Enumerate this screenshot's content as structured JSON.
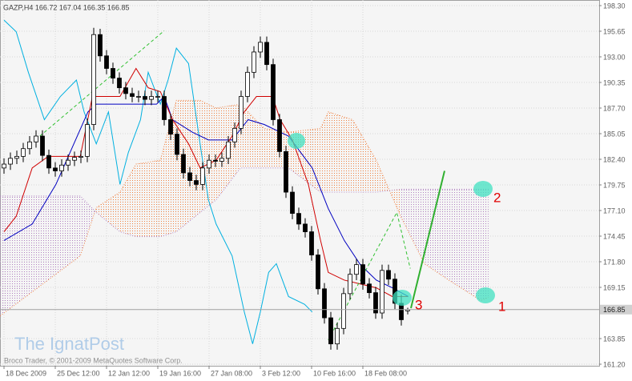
{
  "chart_data": {
    "type": "candlestick",
    "header": "GAZP,H4 166.72 167.04 166.35 166.85",
    "watermark": "The IgnatPost",
    "copyright": "Broco Trader, © 2001-2009 MetaQuotes Software Corp.",
    "annotations": [
      "1",
      "2",
      "3"
    ],
    "up_color": "#ffffff",
    "down_color": "#000000",
    "grid": true,
    "xlim": [
      -0.625,
      92.875
    ],
    "ylim": [
      161.2,
      198.3
    ],
    "yticks": [
      {
        "value": 198.3,
        "label": "198.30"
      },
      {
        "value": 195.65,
        "label": "195.65"
      },
      {
        "value": 193.0,
        "label": "193.00"
      },
      {
        "value": 190.35,
        "label": "190.35"
      },
      {
        "value": 187.7,
        "label": "187.70"
      },
      {
        "value": 185.05,
        "label": "185.05"
      },
      {
        "value": 182.4,
        "label": "182.40"
      },
      {
        "value": 179.75,
        "label": "179.75"
      },
      {
        "value": 177.1,
        "label": "177.10"
      },
      {
        "value": 174.45,
        "label": "174.45"
      },
      {
        "value": 171.8,
        "label": "171.80"
      },
      {
        "value": 169.15,
        "label": "169.15"
      },
      {
        "value": 163.85,
        "label": "163.85"
      },
      {
        "value": 161.2,
        "label": "161.20"
      }
    ],
    "xticks": [
      {
        "value": 0,
        "label": "18 Dec 2009"
      },
      {
        "value": 8,
        "label": "25 Dec 12:00"
      },
      {
        "value": 16,
        "label": "12 Jan 12:00"
      },
      {
        "value": 24,
        "label": "19 Jan 16:00"
      },
      {
        "value": 32,
        "label": "27 Jan 08:00"
      },
      {
        "value": 40,
        "label": "3 Feb 12:00"
      },
      {
        "value": 48,
        "label": "10 Feb 16:00"
      },
      {
        "value": 56,
        "label": "18 Feb 08:00"
      }
    ],
    "current_price": {
      "value": 166.85,
      "label": "166.85"
    },
    "x": [
      0,
      1,
      2,
      3,
      4,
      5,
      6,
      7,
      8,
      9,
      10,
      11,
      12,
      13,
      14,
      15,
      16,
      17,
      18,
      19,
      20,
      21,
      22,
      23,
      24,
      25,
      26,
      27,
      28,
      29,
      30,
      31,
      32,
      33,
      34,
      35,
      36,
      37,
      38,
      39,
      40,
      41,
      42,
      43,
      44,
      45,
      46,
      47,
      48,
      49,
      50,
      51,
      52,
      53,
      54,
      55,
      56,
      57,
      58,
      59,
      60,
      61,
      62,
      63
    ],
    "open": [
      181.5,
      181.9,
      182.5,
      182.7,
      183.5,
      184.2,
      184.8,
      182.8,
      181.5,
      181.2,
      181.8,
      182.3,
      182.6,
      182.7,
      186.0,
      195.3,
      193.1,
      191.8,
      190.8,
      189.8,
      189.2,
      188.9,
      188.9,
      188.6,
      188.9,
      188.9,
      186.5,
      185.0,
      182.9,
      181.0,
      180.2,
      179.8,
      181.5,
      182.3,
      182.2,
      182.5,
      184.2,
      185.6,
      188.9,
      191.4,
      193.5,
      194.5,
      192.2,
      186.5,
      183.2,
      179.0,
      176.8,
      175.7,
      174.9,
      172.5,
      169.0,
      166.0,
      163.3,
      164.9,
      168.5,
      170.5,
      171.5,
      169.5,
      168.6,
      166.5,
      170.9,
      170.0,
      167.5,
      166.72
    ],
    "high": [
      182.5,
      183.1,
      183.3,
      184.1,
      184.8,
      185.4,
      185.4,
      183.4,
      182.1,
      182.4,
      182.9,
      183.2,
      183.3,
      186.6,
      196.0,
      195.9,
      193.7,
      192.4,
      191.4,
      190.4,
      189.8,
      189.5,
      189.5,
      189.5,
      189.5,
      189.5,
      187.1,
      185.6,
      183.5,
      181.6,
      180.8,
      182.1,
      182.9,
      182.9,
      183.1,
      184.8,
      186.2,
      189.5,
      192.0,
      194.1,
      195.1,
      195.1,
      192.8,
      187.1,
      183.8,
      179.6,
      177.4,
      176.3,
      175.5,
      173.1,
      169.6,
      166.6,
      165.5,
      169.1,
      171.1,
      172.1,
      172.1,
      170.1,
      169.2,
      171.5,
      171.5,
      170.6,
      168.4,
      167.04
    ],
    "low": [
      180.9,
      181.3,
      181.9,
      182.1,
      182.9,
      183.6,
      182.2,
      180.9,
      180.6,
      180.6,
      181.2,
      181.7,
      182.0,
      182.1,
      185.4,
      192.5,
      191.2,
      190.2,
      189.2,
      188.6,
      188.3,
      188.3,
      188.0,
      188.0,
      188.3,
      185.9,
      184.4,
      182.3,
      180.4,
      179.6,
      179.2,
      179.2,
      180.9,
      181.6,
      181.6,
      181.9,
      183.6,
      185.0,
      188.3,
      190.8,
      192.9,
      191.6,
      185.9,
      182.6,
      178.4,
      176.2,
      175.1,
      174.3,
      171.9,
      168.4,
      165.4,
      162.7,
      162.7,
      164.3,
      167.9,
      169.9,
      168.9,
      168.0,
      165.9,
      165.9,
      169.4,
      166.9,
      165.2,
      166.35
    ],
    "close": [
      181.9,
      182.5,
      182.7,
      183.5,
      184.2,
      184.8,
      182.8,
      181.5,
      181.2,
      181.8,
      182.3,
      182.6,
      182.7,
      186.0,
      195.3,
      193.1,
      191.8,
      190.8,
      189.8,
      189.2,
      188.9,
      188.9,
      188.6,
      188.9,
      188.9,
      186.5,
      185.0,
      182.9,
      181.0,
      180.2,
      179.8,
      181.5,
      182.3,
      182.2,
      182.5,
      184.2,
      185.6,
      188.9,
      191.4,
      193.5,
      194.5,
      192.2,
      186.5,
      183.2,
      179.0,
      176.8,
      175.7,
      174.9,
      172.5,
      169.0,
      166.0,
      163.3,
      164.9,
      168.5,
      170.5,
      171.5,
      169.5,
      168.6,
      166.5,
      170.9,
      170.0,
      167.5,
      165.8,
      166.85
    ],
    "cloud": {
      "x": [
        -0.6,
        11.9,
        14.4,
        18.1,
        20.6,
        24.4,
        26.9,
        30.6,
        33.1,
        36.9,
        40.6,
        44.4,
        49.4,
        50.6,
        54.4,
        58.1,
        61.9,
        65.6,
        69.4,
        74.4,
        75.6
      ],
      "span_a": [
        166.2,
        172.4,
        177.4,
        179.0,
        181.9,
        182.3,
        188.5,
        188.5,
        187.7,
        188.1,
        185.6,
        185.2,
        185.6,
        187.3,
        186.5,
        182.3,
        176.5,
        171.6,
        169.9,
        167.8,
        168.1
      ],
      "span_b": [
        178.6,
        178.6,
        176.9,
        174.9,
        174.4,
        174.4,
        174.9,
        176.9,
        178.2,
        181.5,
        181.5,
        181.5,
        179.0,
        179.0,
        179.0,
        179.0,
        179.3,
        179.3,
        179.3,
        179.3,
        179.3
      ],
      "up_color": "#f08040",
      "down_color": "#b080c0"
    },
    "lines": [
      {
        "color": "#00b0e0",
        "width": 1,
        "x": [
          0,
          1.9,
          3.8,
          6.3,
          8.8,
          11.3,
          12.5,
          14.4,
          16.3,
          18.1,
          19.4,
          21.3,
          22.5,
          24.4,
          25.6,
          26.9,
          28.8,
          30.6,
          31.9,
          33.1,
          35.6,
          37.5,
          38.8,
          40,
          41.3,
          42.5,
          44.4,
          46.9,
          48.1
        ],
        "values": [
          196.8,
          195.6,
          191.4,
          186.5,
          188.9,
          190.6,
          187.3,
          184.0,
          187.3,
          179.8,
          183.1,
          186.5,
          191.4,
          188.1,
          190.6,
          193.9,
          192.3,
          184.0,
          178.2,
          175.7,
          172.4,
          166.6,
          163.3,
          166.6,
          170.7,
          171.6,
          168.2,
          167.4,
          166.6
        ]
      },
      {
        "color": "#0000c0",
        "width": 1,
        "x": [
          0,
          4.4,
          8.1,
          13.1,
          14.4,
          19.4,
          23.8,
          25,
          26.3,
          29.4,
          31.9,
          35.6,
          38.1,
          40.6,
          44.4,
          48.1,
          50.6,
          53.1,
          55.6,
          58.1,
          60.6,
          63.1
        ],
        "values": [
          174.0,
          175.7,
          179.8,
          187.3,
          188.1,
          188.1,
          188.1,
          188.9,
          186.5,
          185.2,
          184.4,
          184.4,
          186.5,
          186.0,
          184.8,
          181.5,
          177.3,
          174.0,
          171.5,
          169.9,
          169.1,
          168.2
        ]
      },
      {
        "color": "#d00000",
        "width": 1,
        "x": [
          0,
          1.9,
          4.4,
          6.9,
          9.4,
          11.9,
          13.8,
          18.1,
          20.6,
          22.5,
          24.4,
          26.3,
          28.8,
          30.6,
          33.1,
          35.6,
          37.5,
          39.4,
          41.9,
          43.1,
          45,
          47.5,
          49.4,
          50.6,
          53.1,
          55.6,
          58.1,
          60.6,
          63
        ],
        "values": [
          174.9,
          176.5,
          181.5,
          182.7,
          182.7,
          182.7,
          188.9,
          188.9,
          191.8,
          189.8,
          189.4,
          186.5,
          184.0,
          181.5,
          182.3,
          184.8,
          187.3,
          188.9,
          188.9,
          186.5,
          184.4,
          179.8,
          174.0,
          170.7,
          169.9,
          169.5,
          169.1,
          168.2,
          168.2
        ]
      },
      {
        "color": "#30c030",
        "width": 1,
        "dashed": true,
        "x": [
          5.6,
          25,
          38,
          50.6,
          61.3,
          63.4
        ],
        "values": [
          184.8,
          195.7,
          null,
          163.7,
          176.9,
          171.1
        ]
      },
      {
        "color": "#30b030",
        "width": 2,
        "x": [
          63.5,
          68.75
        ],
        "values": [
          167.0,
          181.2
        ]
      }
    ]
  }
}
